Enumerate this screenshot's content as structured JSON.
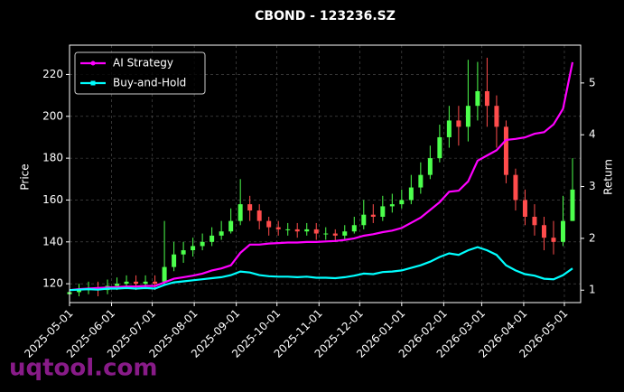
{
  "chart_data": {
    "type": "candlestick",
    "title": "CBOND - 123236.SZ",
    "ylabel": "Price",
    "y2label": "Return",
    "x": [
      "2025-05-01",
      "2025-05-08",
      "2025-05-15",
      "2025-05-22",
      "2025-05-29",
      "2025-06-05",
      "2025-06-12",
      "2025-06-19",
      "2025-06-26",
      "2025-07-03",
      "2025-07-10",
      "2025-07-17",
      "2025-07-24",
      "2025-07-31",
      "2025-08-07",
      "2025-08-14",
      "2025-08-21",
      "2025-08-28",
      "2025-09-04",
      "2025-09-11",
      "2025-09-18",
      "2025-09-25",
      "2025-10-02",
      "2025-10-09",
      "2025-10-16",
      "2025-10-23",
      "2025-10-30",
      "2025-11-06",
      "2025-11-13",
      "2025-11-20",
      "2025-11-27",
      "2025-12-04",
      "2025-12-11",
      "2025-12-18",
      "2025-12-25",
      "2026-01-01",
      "2026-01-08",
      "2026-01-15",
      "2026-01-22",
      "2026-01-29",
      "2026-02-05",
      "2026-02-12",
      "2026-02-19",
      "2026-02-26",
      "2026-03-05",
      "2026-03-12",
      "2026-03-19",
      "2026-03-26",
      "2026-04-02",
      "2026-04-09",
      "2026-04-16",
      "2026-04-23",
      "2026-04-30",
      "2026-05-07"
    ],
    "open": [
      115,
      116,
      117,
      118,
      117,
      119,
      120,
      121,
      120,
      121,
      121,
      128,
      134,
      136,
      138,
      140,
      143,
      145,
      150,
      158,
      155,
      150,
      147,
      146,
      146,
      145,
      146,
      144,
      144,
      143,
      145,
      148,
      153,
      152,
      157,
      158,
      160,
      166,
      172,
      180,
      190,
      198,
      195,
      205,
      212,
      205,
      195,
      172,
      160,
      152,
      148,
      142,
      140,
      150
    ],
    "high": [
      119,
      120,
      121,
      121,
      122,
      123,
      124,
      124,
      124,
      124,
      150,
      140,
      140,
      142,
      144,
      147,
      150,
      156,
      170,
      162,
      158,
      152,
      150,
      149,
      149,
      149,
      149,
      147,
      146,
      148,
      152,
      160,
      158,
      162,
      163,
      165,
      172,
      178,
      186,
      196,
      205,
      205,
      227,
      226,
      228,
      210,
      198,
      175,
      165,
      158,
      152,
      150,
      162,
      180
    ],
    "low": [
      113,
      114,
      115,
      114,
      115,
      117,
      118,
      117,
      118,
      117,
      119,
      126,
      130,
      133,
      136,
      138,
      141,
      144,
      148,
      150,
      146,
      143,
      143,
      143,
      142,
      143,
      141,
      141,
      140,
      141,
      144,
      146,
      149,
      150,
      154,
      156,
      158,
      163,
      170,
      178,
      185,
      186,
      188,
      198,
      195,
      185,
      168,
      155,
      148,
      143,
      136,
      134,
      138,
      150
    ],
    "close": [
      116,
      117,
      118,
      117,
      119,
      120,
      121,
      120,
      121,
      120,
      128,
      134,
      136,
      138,
      140,
      143,
      145,
      150,
      158,
      155,
      150,
      147,
      146,
      146,
      145,
      146,
      144,
      144,
      143,
      145,
      148,
      153,
      152,
      157,
      158,
      160,
      166,
      172,
      180,
      190,
      198,
      195,
      205,
      212,
      205,
      195,
      172,
      160,
      152,
      148,
      142,
      140,
      150,
      165
    ],
    "up_color": "#4cff4c",
    "down_color": "#ff4c4c",
    "series": [
      {
        "name": "AI Strategy",
        "color": "#ff00ff",
        "axis": "y2",
        "marker": "circle",
        "values": [
          1.0,
          1.02,
          1.03,
          1.04,
          1.05,
          1.06,
          1.07,
          1.07,
          1.08,
          1.08,
          1.15,
          1.22,
          1.25,
          1.28,
          1.32,
          1.38,
          1.42,
          1.48,
          1.72,
          1.88,
          1.88,
          1.9,
          1.91,
          1.92,
          1.92,
          1.93,
          1.93,
          1.94,
          1.95,
          1.97,
          2.0,
          2.05,
          2.08,
          2.12,
          2.15,
          2.2,
          2.3,
          2.4,
          2.55,
          2.7,
          2.9,
          2.92,
          3.1,
          3.5,
          3.6,
          3.7,
          3.9,
          3.92,
          3.95,
          4.02,
          4.05,
          4.2,
          4.5,
          5.4
        ]
      },
      {
        "name": "Buy-and-Hold",
        "color": "#00ffff",
        "axis": "y2",
        "marker": "square",
        "values": [
          1.0,
          1.01,
          1.02,
          1.01,
          1.03,
          1.03,
          1.04,
          1.03,
          1.04,
          1.03,
          1.1,
          1.15,
          1.17,
          1.19,
          1.21,
          1.23,
          1.25,
          1.29,
          1.36,
          1.34,
          1.29,
          1.27,
          1.26,
          1.26,
          1.25,
          1.26,
          1.24,
          1.24,
          1.23,
          1.25,
          1.28,
          1.32,
          1.31,
          1.35,
          1.36,
          1.38,
          1.43,
          1.48,
          1.55,
          1.64,
          1.71,
          1.68,
          1.77,
          1.83,
          1.77,
          1.68,
          1.48,
          1.38,
          1.31,
          1.28,
          1.22,
          1.21,
          1.29,
          1.42
        ]
      }
    ],
    "xlim": [
      "2025-05-01",
      "2026-05-13"
    ],
    "xticks": [
      "2025-05-01",
      "2025-06-01",
      "2025-07-01",
      "2025-08-01",
      "2025-09-01",
      "2025-10-01",
      "2025-11-01",
      "2025-12-01",
      "2026-01-01",
      "2026-02-01",
      "2026-03-01",
      "2026-04-01",
      "2026-05-01"
    ],
    "ylim": [
      111,
      234
    ],
    "yticks": [
      120,
      140,
      160,
      180,
      200,
      220
    ],
    "y2lim": [
      0.76,
      5.73
    ],
    "y2ticks": [
      1,
      2,
      3,
      4,
      5
    ],
    "grid": true,
    "legend": "upper left"
  },
  "watermark": "uqtool.com"
}
